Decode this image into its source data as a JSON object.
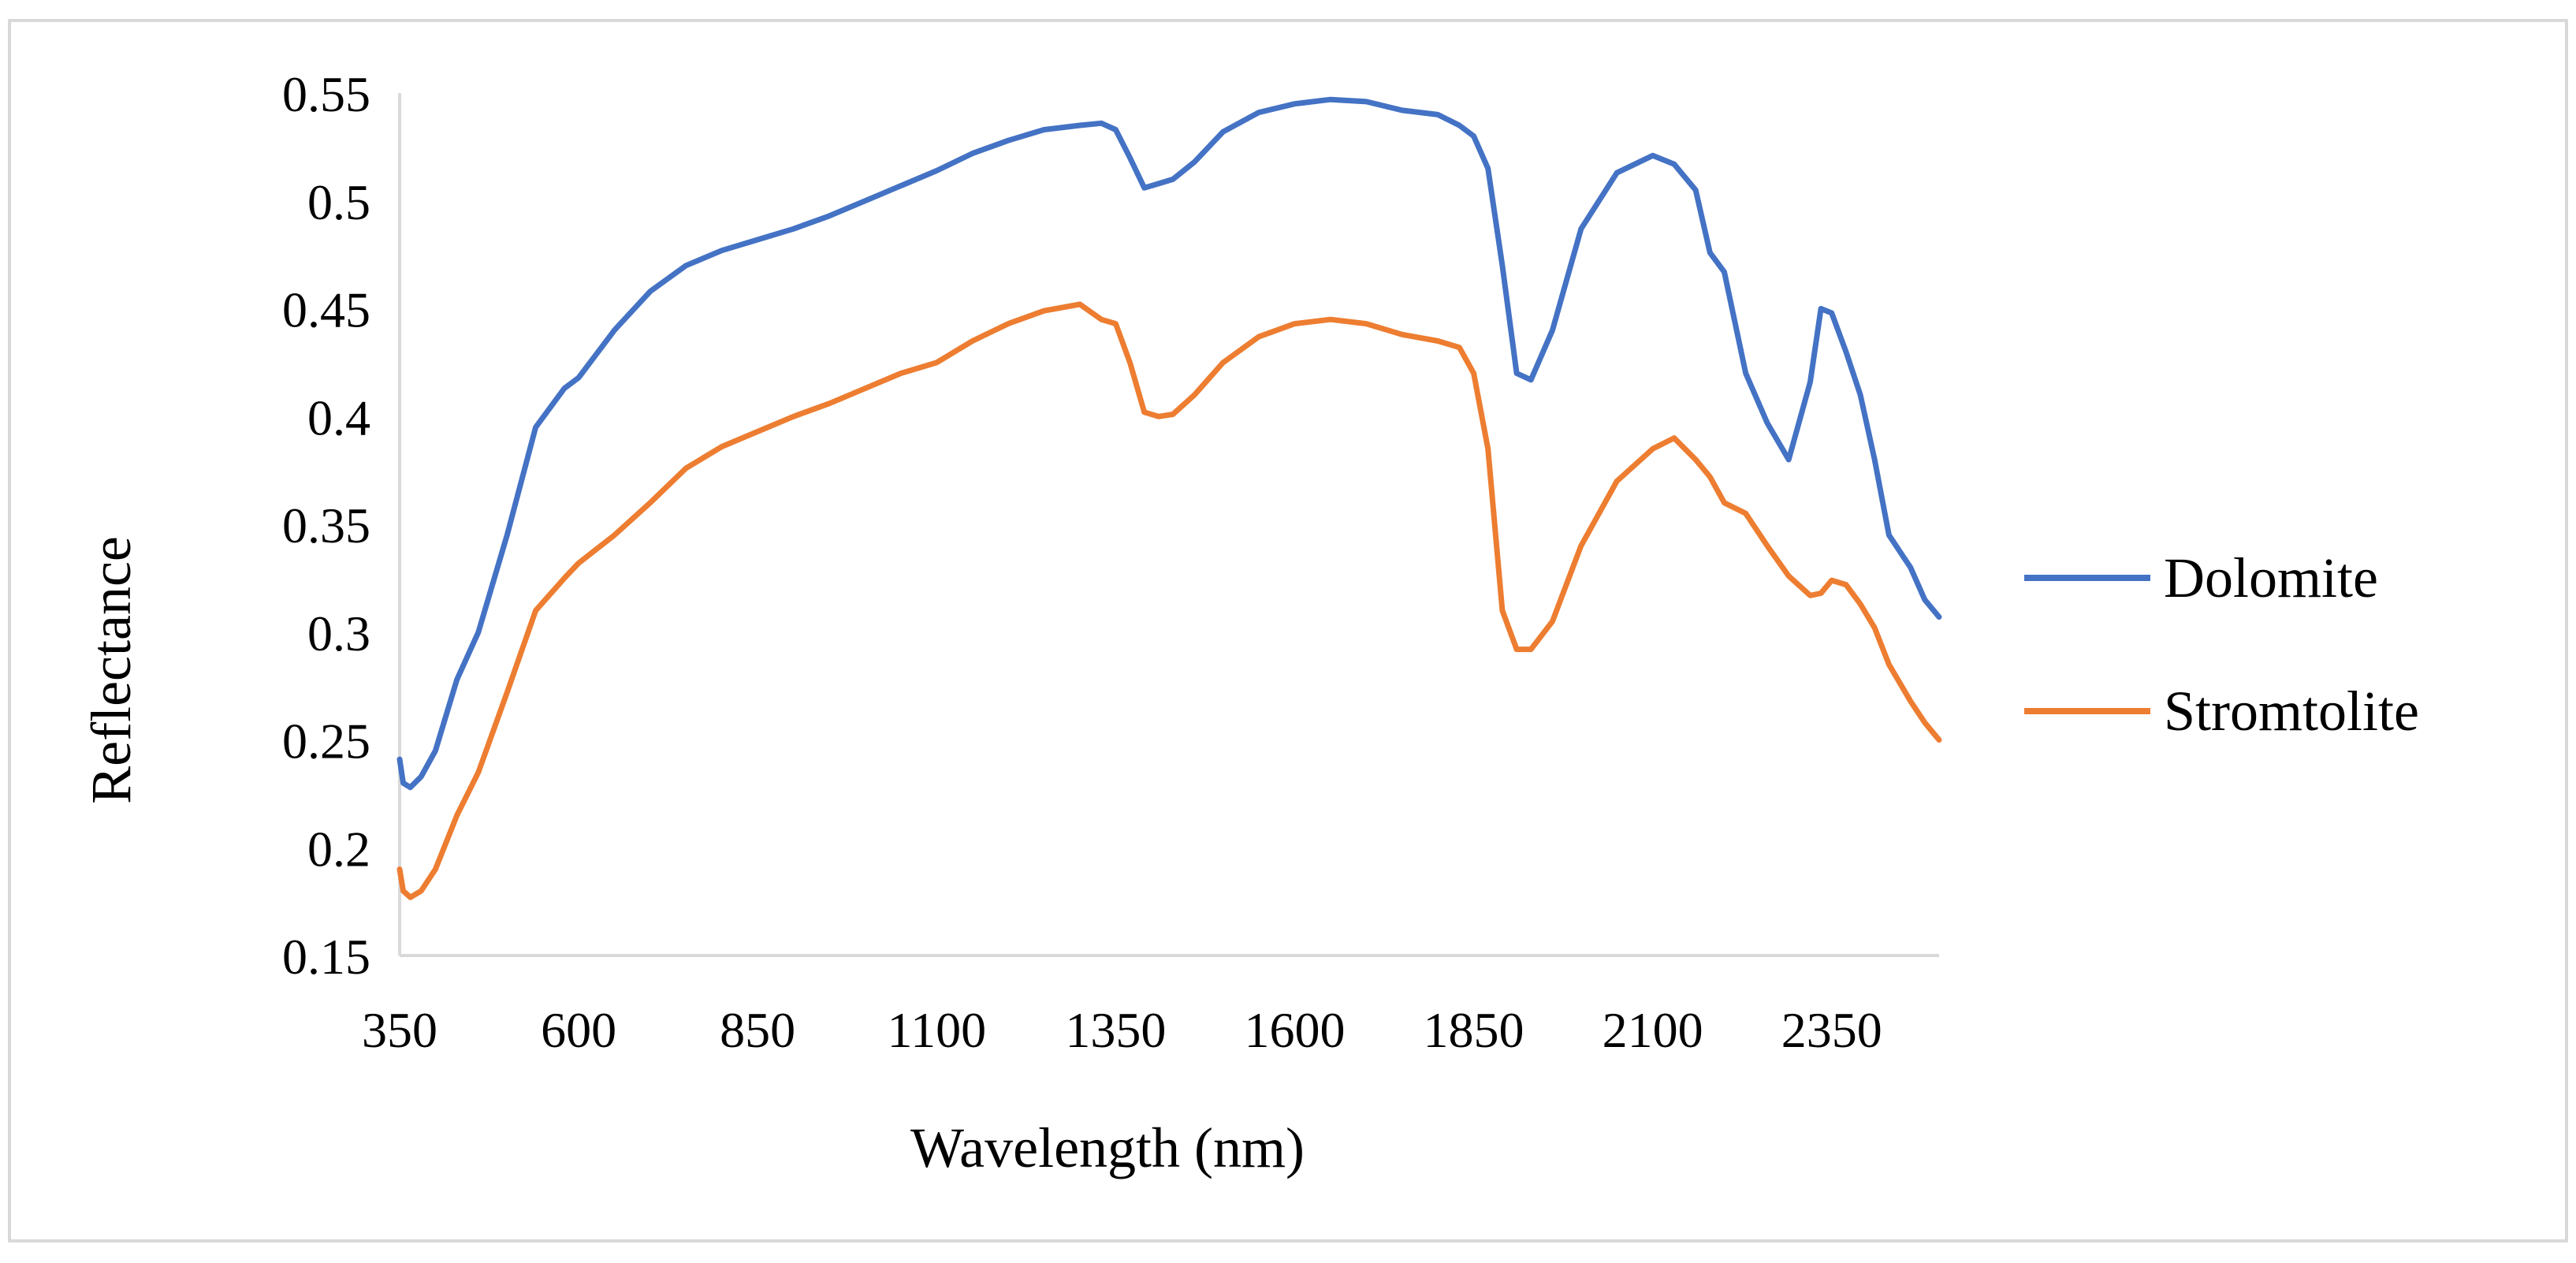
{
  "chart_data": {
    "type": "line",
    "title": "",
    "xlabel": "Wavelength (nm)",
    "ylabel": "Reflectance",
    "xlim": [
      350,
      2500
    ],
    "ylim": [
      0.15,
      0.55
    ],
    "x_ticks": [
      350,
      600,
      850,
      1100,
      1350,
      1600,
      1850,
      2100,
      2350
    ],
    "x_tick_labels": [
      "350",
      "600",
      "850",
      "1100",
      "1350",
      "1600",
      "1850",
      "2100",
      "2350"
    ],
    "y_ticks": [
      0.15,
      0.2,
      0.25,
      0.3,
      0.35,
      0.4,
      0.45,
      0.5,
      0.55
    ],
    "y_tick_labels": [
      "0.15",
      "0.2",
      "0.25",
      "0.3",
      "0.35",
      "0.4",
      "0.45",
      "0.5",
      "0.55"
    ],
    "grid": false,
    "legend_position": "right",
    "series": [
      {
        "name": "Dolomite",
        "color": "#4472C4",
        "x": [
          350,
          355,
          365,
          380,
          400,
          430,
          460,
          500,
          540,
          580,
          600,
          650,
          700,
          750,
          800,
          850,
          900,
          950,
          1000,
          1050,
          1100,
          1150,
          1200,
          1250,
          1300,
          1330,
          1350,
          1370,
          1390,
          1410,
          1430,
          1460,
          1500,
          1550,
          1600,
          1650,
          1700,
          1750,
          1800,
          1830,
          1850,
          1870,
          1890,
          1910,
          1930,
          1960,
          2000,
          2050,
          2100,
          2130,
          2160,
          2180,
          2200,
          2230,
          2260,
          2290,
          2320,
          2335,
          2350,
          2370,
          2390,
          2410,
          2430,
          2460,
          2480,
          2500
        ],
        "values": [
          0.241,
          0.23,
          0.228,
          0.233,
          0.245,
          0.278,
          0.3,
          0.345,
          0.395,
          0.413,
          0.418,
          0.44,
          0.458,
          0.47,
          0.477,
          0.482,
          0.487,
          0.493,
          0.5,
          0.507,
          0.514,
          0.522,
          0.528,
          0.533,
          0.535,
          0.536,
          0.533,
          0.52,
          0.506,
          0.508,
          0.51,
          0.518,
          0.532,
          0.541,
          0.545,
          0.547,
          0.546,
          0.542,
          0.54,
          0.535,
          0.53,
          0.515,
          0.47,
          0.42,
          0.417,
          0.44,
          0.487,
          0.513,
          0.521,
          0.517,
          0.505,
          0.476,
          0.467,
          0.42,
          0.397,
          0.38,
          0.416,
          0.45,
          0.448,
          0.43,
          0.41,
          0.38,
          0.345,
          0.33,
          0.315,
          0.307
        ]
      },
      {
        "name": "Stromtolite",
        "color": "#ED7D31",
        "x": [
          350,
          355,
          365,
          380,
          400,
          430,
          460,
          500,
          540,
          580,
          600,
          650,
          700,
          750,
          800,
          850,
          900,
          950,
          1000,
          1050,
          1100,
          1150,
          1200,
          1250,
          1300,
          1330,
          1350,
          1370,
          1390,
          1410,
          1430,
          1460,
          1500,
          1550,
          1600,
          1650,
          1700,
          1750,
          1800,
          1830,
          1850,
          1870,
          1890,
          1910,
          1930,
          1960,
          2000,
          2050,
          2100,
          2130,
          2160,
          2180,
          2200,
          2230,
          2260,
          2290,
          2320,
          2335,
          2350,
          2370,
          2390,
          2410,
          2430,
          2460,
          2480,
          2500
        ],
        "values": [
          0.19,
          0.18,
          0.177,
          0.18,
          0.19,
          0.215,
          0.235,
          0.272,
          0.31,
          0.325,
          0.332,
          0.345,
          0.36,
          0.376,
          0.386,
          0.393,
          0.4,
          0.406,
          0.413,
          0.42,
          0.425,
          0.435,
          0.443,
          0.449,
          0.452,
          0.445,
          0.443,
          0.425,
          0.402,
          0.4,
          0.401,
          0.41,
          0.425,
          0.437,
          0.443,
          0.445,
          0.443,
          0.438,
          0.435,
          0.432,
          0.42,
          0.385,
          0.31,
          0.292,
          0.292,
          0.305,
          0.34,
          0.37,
          0.385,
          0.39,
          0.38,
          0.372,
          0.36,
          0.355,
          0.34,
          0.326,
          0.317,
          0.318,
          0.324,
          0.322,
          0.313,
          0.302,
          0.285,
          0.268,
          0.258,
          0.25
        ]
      }
    ]
  }
}
